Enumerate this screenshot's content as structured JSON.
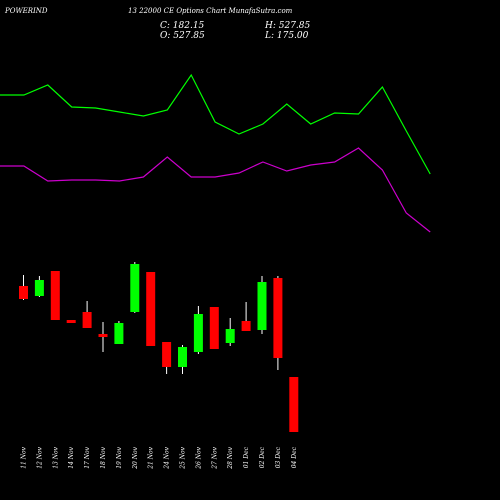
{
  "header": {
    "symbol": "POWERIND",
    "subtitle": "13 22000 CE Options Chart MunafaSutra.com",
    "close": "C: 182.15",
    "open": "O: 527.85",
    "high": "H: 527.85",
    "low": "L: 175.00"
  },
  "colors": {
    "background": "#000000",
    "bull": "#00ff00",
    "bear": "#ff0000",
    "wick": "#ffffff",
    "upper_line": "#00ff00",
    "lower_line": "#cc00cc"
  },
  "chart_data": {
    "type": "candlestick",
    "categories": [
      "11 Nov",
      "12 Nov",
      "13 Nov",
      "14 Nov",
      "17 Nov",
      "18 Nov",
      "19 Nov",
      "20 Nov",
      "21 Nov",
      "24 Nov",
      "25 Nov",
      "26 Nov",
      "27 Nov",
      "28 Nov",
      "01 Dec",
      "02 Dec",
      "03 Dec",
      "04 Dec"
    ],
    "candles": [
      {
        "open": -286,
        "close": -299,
        "high": -275,
        "low": -300
      },
      {
        "open": -296,
        "close": -280,
        "high": -276,
        "low": -297
      },
      {
        "open": -271,
        "close": -320,
        "high": -271,
        "low": -320
      },
      {
        "open": -320,
        "close": -323,
        "high": -320,
        "low": -323
      },
      {
        "open": -312,
        "close": -328,
        "high": -301,
        "low": -328
      },
      {
        "open": -334,
        "close": -337,
        "high": -322,
        "low": -352
      },
      {
        "open": -344,
        "close": -323,
        "high": -321,
        "low": -344
      },
      {
        "open": -312,
        "close": -264,
        "high": -262,
        "low": -313
      },
      {
        "open": -272,
        "close": -346,
        "high": -272,
        "low": -346
      },
      {
        "open": -342,
        "close": -367,
        "high": -342,
        "low": -374
      },
      {
        "open": -367,
        "close": -347,
        "high": -345,
        "low": -374
      },
      {
        "open": -352,
        "close": -314,
        "high": -306,
        "low": -354
      },
      {
        "open": -307,
        "close": -349,
        "high": -307,
        "low": -349
      },
      {
        "open": -343,
        "close": -329,
        "high": -318,
        "low": -346
      },
      {
        "open": -321,
        "close": -331,
        "high": -302,
        "low": -331
      },
      {
        "open": -330,
        "close": -282,
        "high": -276,
        "low": -334
      },
      {
        "open": -278,
        "close": -358,
        "high": -276,
        "low": -370
      },
      {
        "open": -377,
        "close": -432,
        "high": -377,
        "low": -432
      }
    ],
    "upper_line": [
      -95,
      -95,
      -85,
      -107,
      -108,
      -112,
      -116,
      -110,
      -75,
      -122,
      -134,
      -124,
      -104,
      -124,
      -113,
      -114,
      -87,
      -131,
      -174
    ],
    "lower_line": [
      -166,
      -166,
      -181,
      -180,
      -180,
      -181,
      -177,
      -157,
      -177,
      -177,
      -173,
      -162,
      -171,
      -165,
      -162,
      -148,
      -170,
      -213,
      -232
    ]
  }
}
